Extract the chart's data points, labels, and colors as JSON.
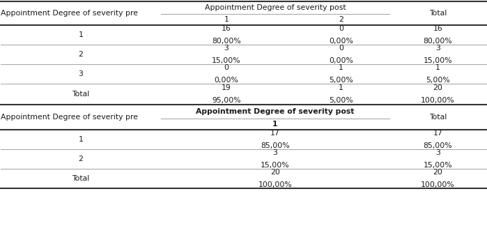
{
  "table1_header_col0": "Appointment Degree of severity pre",
  "table1_header_span": "Appointment Degree of severity post",
  "table1_header_sub1": "1",
  "table1_header_sub2": "2",
  "table1_header_total": "Total",
  "table1_rows": [
    {
      "pre": "1",
      "post1_n": "16",
      "post1_p": "80,00%",
      "post2_n": "0",
      "post2_p": "0,00%",
      "total_n": "16",
      "total_p": "80,00%"
    },
    {
      "pre": "2",
      "post1_n": "3",
      "post1_p": "15,00%",
      "post2_n": "0",
      "post2_p": "0,00%",
      "total_n": "3",
      "total_p": "15,00%"
    },
    {
      "pre": "3",
      "post1_n": "0",
      "post1_p": "0,00%",
      "post2_n": "1",
      "post2_p": "5,00%",
      "total_n": "1",
      "total_p": "5,00%"
    },
    {
      "pre": "Total",
      "post1_n": "19",
      "post1_p": "95,00%",
      "post2_n": "1",
      "post2_p": "5,00%",
      "total_n": "20",
      "total_p": "100,00%"
    }
  ],
  "table2_header_col0": "Appointment Degree of severity pre",
  "table2_header_span": "Appointment Degree of severity post",
  "table2_header_sub1": "1",
  "table2_header_total": "Total",
  "table2_rows": [
    {
      "pre": "1",
      "post1_n": "17",
      "post1_p": "85,00%",
      "total_n": "17",
      "total_p": "85,00%"
    },
    {
      "pre": "2",
      "post1_n": "3",
      "post1_p": "15,00%",
      "total_n": "3",
      "total_p": "15,00%"
    },
    {
      "pre": "Total",
      "post1_n": "20",
      "post1_p": "100,00%",
      "total_n": "20",
      "total_p": "100,00%"
    }
  ],
  "bg_color": "#ffffff",
  "text_color": "#1a1a1a",
  "line_color_thin": "#aaaaaa",
  "line_color_thick": "#333333",
  "font_size": 7.8
}
